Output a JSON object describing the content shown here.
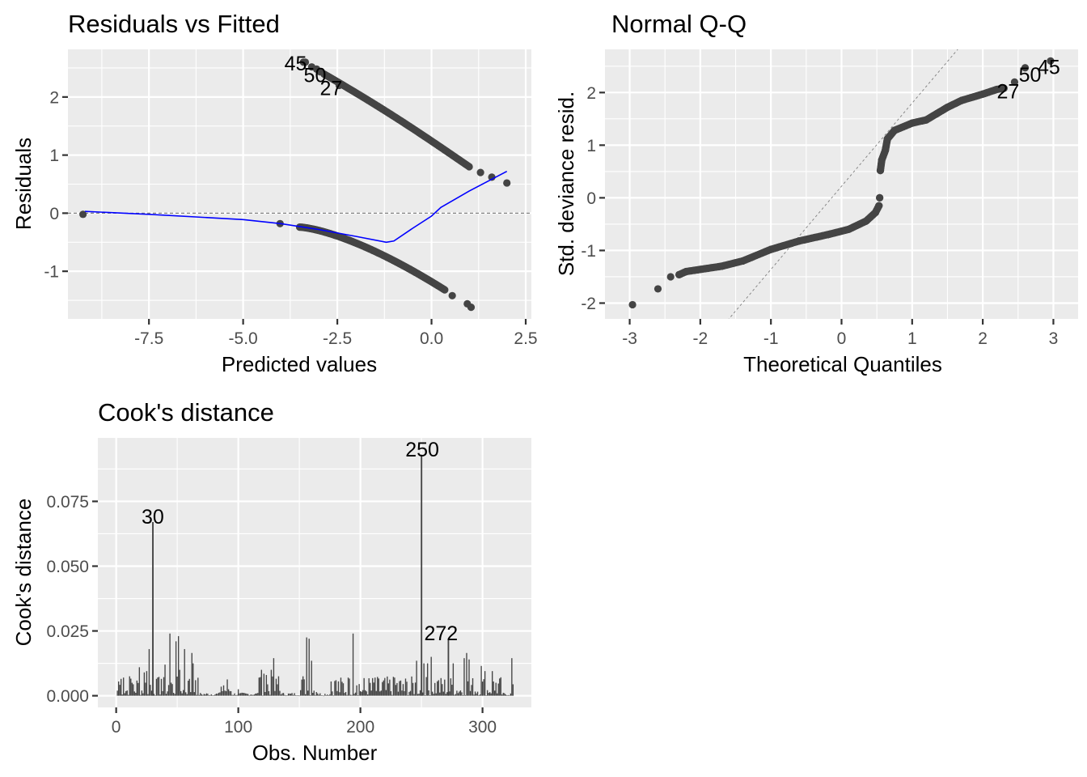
{
  "colors": {
    "panel_background": "#ebebeb",
    "grid": "#ffffff",
    "points": "#444444",
    "smooth_line": "#0000ff",
    "reference_line": "#7f7f7f",
    "bars": "#444444"
  },
  "chart_data": [
    {
      "id": "residuals-vs-fitted",
      "type": "scatter",
      "title": "Residuals vs Fitted",
      "xlabel": "Predicted values",
      "ylabel": "Residuals",
      "xlim": [
        -9.65,
        2.65
      ],
      "ylim": [
        -1.82,
        2.82
      ],
      "xticks": [
        -7.5,
        -5.0,
        -2.5,
        0.0,
        2.5
      ],
      "xtick_labels": [
        "-7.5",
        "-5.0",
        "-2.5",
        "0.0",
        "2.5"
      ],
      "yticks": [
        -1,
        0,
        1,
        2
      ],
      "ytick_labels": [
        "-1",
        "0",
        "1",
        "2"
      ],
      "grid": true,
      "reference_line": {
        "y": 0,
        "style": "dashed"
      },
      "upper_branch": {
        "x_start": -3.4,
        "y_start": 2.6,
        "x_end": 1.0,
        "y_end": 0.8
      },
      "lower_branch_note": "curve from (-4.0,-0.18) bending down to (1.05,-1.62)",
      "points": [
        {
          "x": -9.25,
          "y": -0.02
        },
        {
          "x": -4.02,
          "y": -0.18
        },
        {
          "x": 0.55,
          "y": -1.42
        },
        {
          "x": 0.95,
          "y": -1.56
        },
        {
          "x": 1.05,
          "y": -1.62
        },
        {
          "x": 1.3,
          "y": 0.7
        },
        {
          "x": 1.6,
          "y": 0.62
        },
        {
          "x": 2.0,
          "y": 0.52
        }
      ],
      "labeled_points": [
        {
          "label": "45",
          "x": -3.35,
          "y": 2.6
        },
        {
          "label": "50",
          "x": -3.05,
          "y": 2.48
        },
        {
          "label": "27",
          "x": -2.45,
          "y": 2.2
        }
      ],
      "smooth_line": [
        {
          "x": -9.2,
          "y": 0.03
        },
        {
          "x": -7.5,
          "y": -0.02
        },
        {
          "x": -5.0,
          "y": -0.11
        },
        {
          "x": -4.0,
          "y": -0.18
        },
        {
          "x": -3.0,
          "y": -0.28
        },
        {
          "x": -2.0,
          "y": -0.4
        },
        {
          "x": -1.2,
          "y": -0.5
        },
        {
          "x": -1.0,
          "y": -0.48
        },
        {
          "x": -0.5,
          "y": -0.26
        },
        {
          "x": 0.0,
          "y": -0.05
        },
        {
          "x": 0.25,
          "y": 0.1
        },
        {
          "x": 1.0,
          "y": 0.38
        },
        {
          "x": 2.0,
          "y": 0.72
        }
      ]
    },
    {
      "id": "normal-qq",
      "type": "scatter",
      "title": "Normal Q-Q",
      "xlabel": "Theoretical Quantiles",
      "ylabel": "Std. deviance resid.",
      "xlim": [
        -3.35,
        3.35
      ],
      "ylim": [
        -2.3,
        2.82
      ],
      "xticks": [
        -3,
        -2,
        -1,
        0,
        1,
        2,
        3
      ],
      "xtick_labels": [
        "-3",
        "-2",
        "-1",
        "0",
        "1",
        "2",
        "3"
      ],
      "yticks": [
        -2,
        -1,
        0,
        1,
        2
      ],
      "ytick_labels": [
        "-2",
        "-1",
        "0",
        "1",
        "2"
      ],
      "grid": true,
      "reference_line": {
        "slope": 1.58,
        "intercept": 0.22,
        "style": "dotted"
      },
      "curve": [
        {
          "x": -2.96,
          "y": -2.03
        },
        {
          "x": -2.6,
          "y": -1.73
        },
        {
          "x": -2.42,
          "y": -1.5
        },
        {
          "x": -2.3,
          "y": -1.46
        },
        {
          "x": -2.2,
          "y": -1.4
        },
        {
          "x": -2.0,
          "y": -1.36
        },
        {
          "x": -1.7,
          "y": -1.3
        },
        {
          "x": -1.4,
          "y": -1.2
        },
        {
          "x": -1.0,
          "y": -0.98
        },
        {
          "x": -0.6,
          "y": -0.82
        },
        {
          "x": -0.2,
          "y": -0.7
        },
        {
          "x": 0.1,
          "y": -0.6
        },
        {
          "x": 0.35,
          "y": -0.44
        },
        {
          "x": 0.48,
          "y": -0.28
        },
        {
          "x": 0.53,
          "y": -0.15
        },
        {
          "x": 0.54,
          "y": 0.0
        },
        {
          "x": 0.55,
          "y": 0.52
        },
        {
          "x": 0.57,
          "y": 0.72
        },
        {
          "x": 0.62,
          "y": 0.9
        },
        {
          "x": 0.65,
          "y": 1.12
        },
        {
          "x": 0.75,
          "y": 1.28
        },
        {
          "x": 1.0,
          "y": 1.42
        },
        {
          "x": 1.2,
          "y": 1.48
        },
        {
          "x": 1.35,
          "y": 1.6
        },
        {
          "x": 1.5,
          "y": 1.72
        },
        {
          "x": 1.7,
          "y": 1.85
        },
        {
          "x": 2.0,
          "y": 1.97
        },
        {
          "x": 2.2,
          "y": 2.06
        },
        {
          "x": 2.3,
          "y": 2.08
        }
      ],
      "labeled_points": [
        {
          "label": "27",
          "x": 2.45,
          "y": 2.2
        },
        {
          "label": "50",
          "x": 2.6,
          "y": 2.47
        },
        {
          "label": "45",
          "x": 2.96,
          "y": 2.6
        }
      ]
    },
    {
      "id": "cooks-distance",
      "type": "bar",
      "title": "Cook's distance",
      "xlabel": "Obs. Number",
      "ylabel": "Cook's distance",
      "xlim": [
        -15,
        340
      ],
      "ylim": [
        -0.0045,
        0.0995
      ],
      "xticks": [
        0,
        100,
        200,
        300
      ],
      "xtick_labels": [
        "0",
        "100",
        "200",
        "300"
      ],
      "yticks": [
        0.0,
        0.025,
        0.05,
        0.075
      ],
      "ytick_labels": [
        "0.000",
        "0.025",
        "0.050",
        "0.075"
      ],
      "grid": true,
      "labeled_bars": [
        {
          "label": "30",
          "obs": 30,
          "value": 0.067
        },
        {
          "label": "250",
          "obs": 250,
          "value": 0.093
        },
        {
          "label": "272",
          "obs": 272,
          "value": 0.022
        }
      ],
      "notable_bars": [
        {
          "obs": 2,
          "value": 0.0055
        },
        {
          "obs": 4,
          "value": 0.0065
        },
        {
          "obs": 6,
          "value": 0.007
        },
        {
          "obs": 11,
          "value": 0.0075
        },
        {
          "obs": 13,
          "value": 0.005
        },
        {
          "obs": 19,
          "value": 0.011
        },
        {
          "obs": 23,
          "value": 0.009
        },
        {
          "obs": 25,
          "value": 0.0095
        },
        {
          "obs": 27,
          "value": 0.018
        },
        {
          "obs": 33,
          "value": 0.0065
        },
        {
          "obs": 37,
          "value": 0.0065
        },
        {
          "obs": 40,
          "value": 0.012
        },
        {
          "obs": 44,
          "value": 0.024
        },
        {
          "obs": 46,
          "value": 0.0045
        },
        {
          "obs": 49,
          "value": 0.021
        },
        {
          "obs": 51,
          "value": 0.023
        },
        {
          "obs": 52,
          "value": 0.01
        },
        {
          "obs": 56,
          "value": 0.018
        },
        {
          "obs": 60,
          "value": 0.0065
        },
        {
          "obs": 62,
          "value": 0.0165
        },
        {
          "obs": 63,
          "value": 0.0125
        },
        {
          "obs": 65,
          "value": 0.006
        },
        {
          "obs": 86,
          "value": 0.0035
        },
        {
          "obs": 88,
          "value": 0.004
        },
        {
          "obs": 92,
          "value": 0.0025
        },
        {
          "obs": 100,
          "value": 0.0025
        },
        {
          "obs": 117,
          "value": 0.007
        },
        {
          "obs": 119,
          "value": 0.01
        },
        {
          "obs": 121,
          "value": 0.0085
        },
        {
          "obs": 123,
          "value": 0.008
        },
        {
          "obs": 127,
          "value": 0.01
        },
        {
          "obs": 129,
          "value": 0.0145
        },
        {
          "obs": 133,
          "value": 0.0075
        },
        {
          "obs": 153,
          "value": 0.0075
        },
        {
          "obs": 156,
          "value": 0.0225
        },
        {
          "obs": 158,
          "value": 0.022
        },
        {
          "obs": 160,
          "value": 0.0135
        },
        {
          "obs": 176,
          "value": 0.0055
        },
        {
          "obs": 180,
          "value": 0.006
        },
        {
          "obs": 190,
          "value": 0.007
        },
        {
          "obs": 194,
          "value": 0.024
        },
        {
          "obs": 197,
          "value": 0.004
        },
        {
          "obs": 212,
          "value": 0.007
        },
        {
          "obs": 228,
          "value": 0.007
        },
        {
          "obs": 235,
          "value": 0.0045
        },
        {
          "obs": 246,
          "value": 0.0135
        },
        {
          "obs": 252,
          "value": 0.0125
        },
        {
          "obs": 255,
          "value": 0.0125
        },
        {
          "obs": 258,
          "value": 0.015
        },
        {
          "obs": 264,
          "value": 0.006
        },
        {
          "obs": 276,
          "value": 0.0125
        },
        {
          "obs": 285,
          "value": 0.0145
        },
        {
          "obs": 287,
          "value": 0.0165
        },
        {
          "obs": 289,
          "value": 0.014
        },
        {
          "obs": 299,
          "value": 0.0115
        },
        {
          "obs": 302,
          "value": 0.0095
        },
        {
          "obs": 308,
          "value": 0.0095
        },
        {
          "obs": 311,
          "value": 0.005
        },
        {
          "obs": 324,
          "value": 0.0145
        }
      ],
      "n_obs": 325
    }
  ]
}
